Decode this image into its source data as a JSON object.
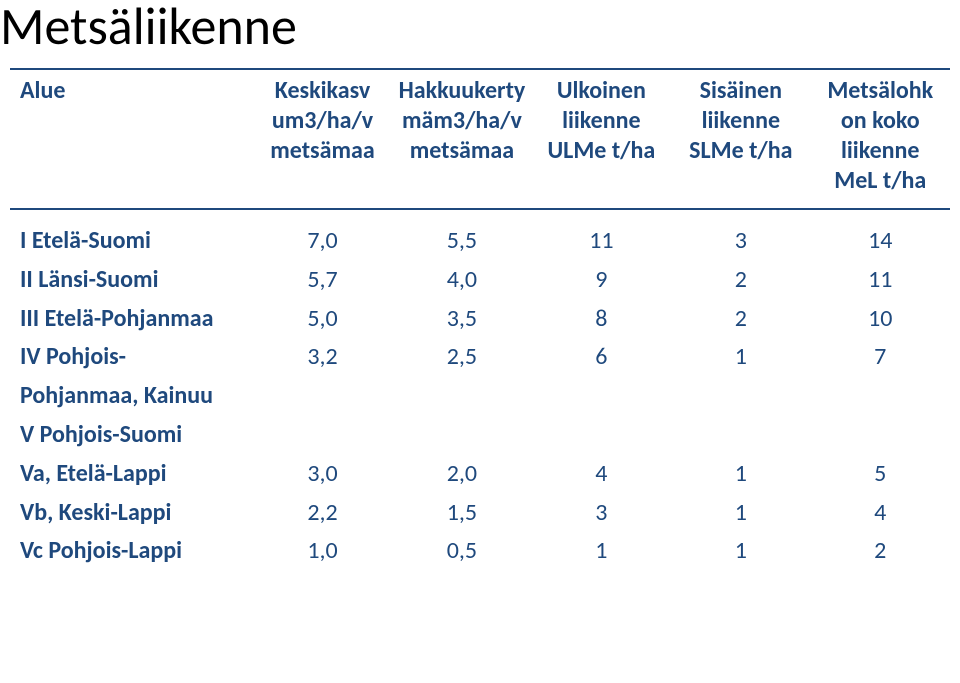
{
  "title_color": "#000000",
  "heading_color": "#1f497d",
  "label_color": "#1f497d",
  "value_color": "#1f497d",
  "rule_color": "#1f497d",
  "background_color": "#ffffff",
  "page_title": "Metsäliikenne",
  "header": {
    "c0": "Alue",
    "c1": [
      "Keskikasv",
      "um3/ha/v",
      "metsämaa"
    ],
    "c2": [
      "Hakkuukerty",
      "mäm3/ha/v",
      "metsämaa"
    ],
    "c3": [
      "Ulkoinen",
      "liikenne",
      "ULMe t/ha"
    ],
    "c4": [
      "Sisäinen",
      "liikenne",
      "SLMe t/ha"
    ],
    "c5": [
      "Metsälohk",
      "on koko",
      "liikenne",
      "MeL t/ha"
    ]
  },
  "rows": [
    {
      "label": "I Etelä-Suomi",
      "v": [
        "7,0",
        "5,5",
        "11",
        "3",
        "14"
      ]
    },
    {
      "label": "II Länsi-Suomi",
      "v": [
        "5,7",
        "4,0",
        "9",
        "2",
        "11"
      ]
    },
    {
      "label": "III Etelä-Pohjanmaa",
      "v": [
        "5,0",
        "3,5",
        "8",
        "2",
        "10"
      ]
    },
    {
      "label": "IV Pohjois-",
      "v": [
        "3,2",
        "2,5",
        "6",
        "1",
        "7"
      ]
    },
    {
      "label": "Pohjanmaa, Kainuu",
      "v": [
        "",
        "",
        "",
        "",
        ""
      ]
    },
    {
      "label": "V Pohjois-Suomi",
      "v": [
        "",
        "",
        "",
        "",
        ""
      ]
    },
    {
      "label": "Va, Etelä-Lappi",
      "v": [
        "3,0",
        "2,0",
        "4",
        "1",
        "5"
      ]
    },
    {
      "label": "Vb, Keski-Lappi",
      "v": [
        "2,2",
        "1,5",
        "3",
        "1",
        "4"
      ]
    },
    {
      "label": "Vc Pohjois-Lappi",
      "v": [
        "1,0",
        "0,5",
        "1",
        "1",
        "2"
      ]
    }
  ]
}
